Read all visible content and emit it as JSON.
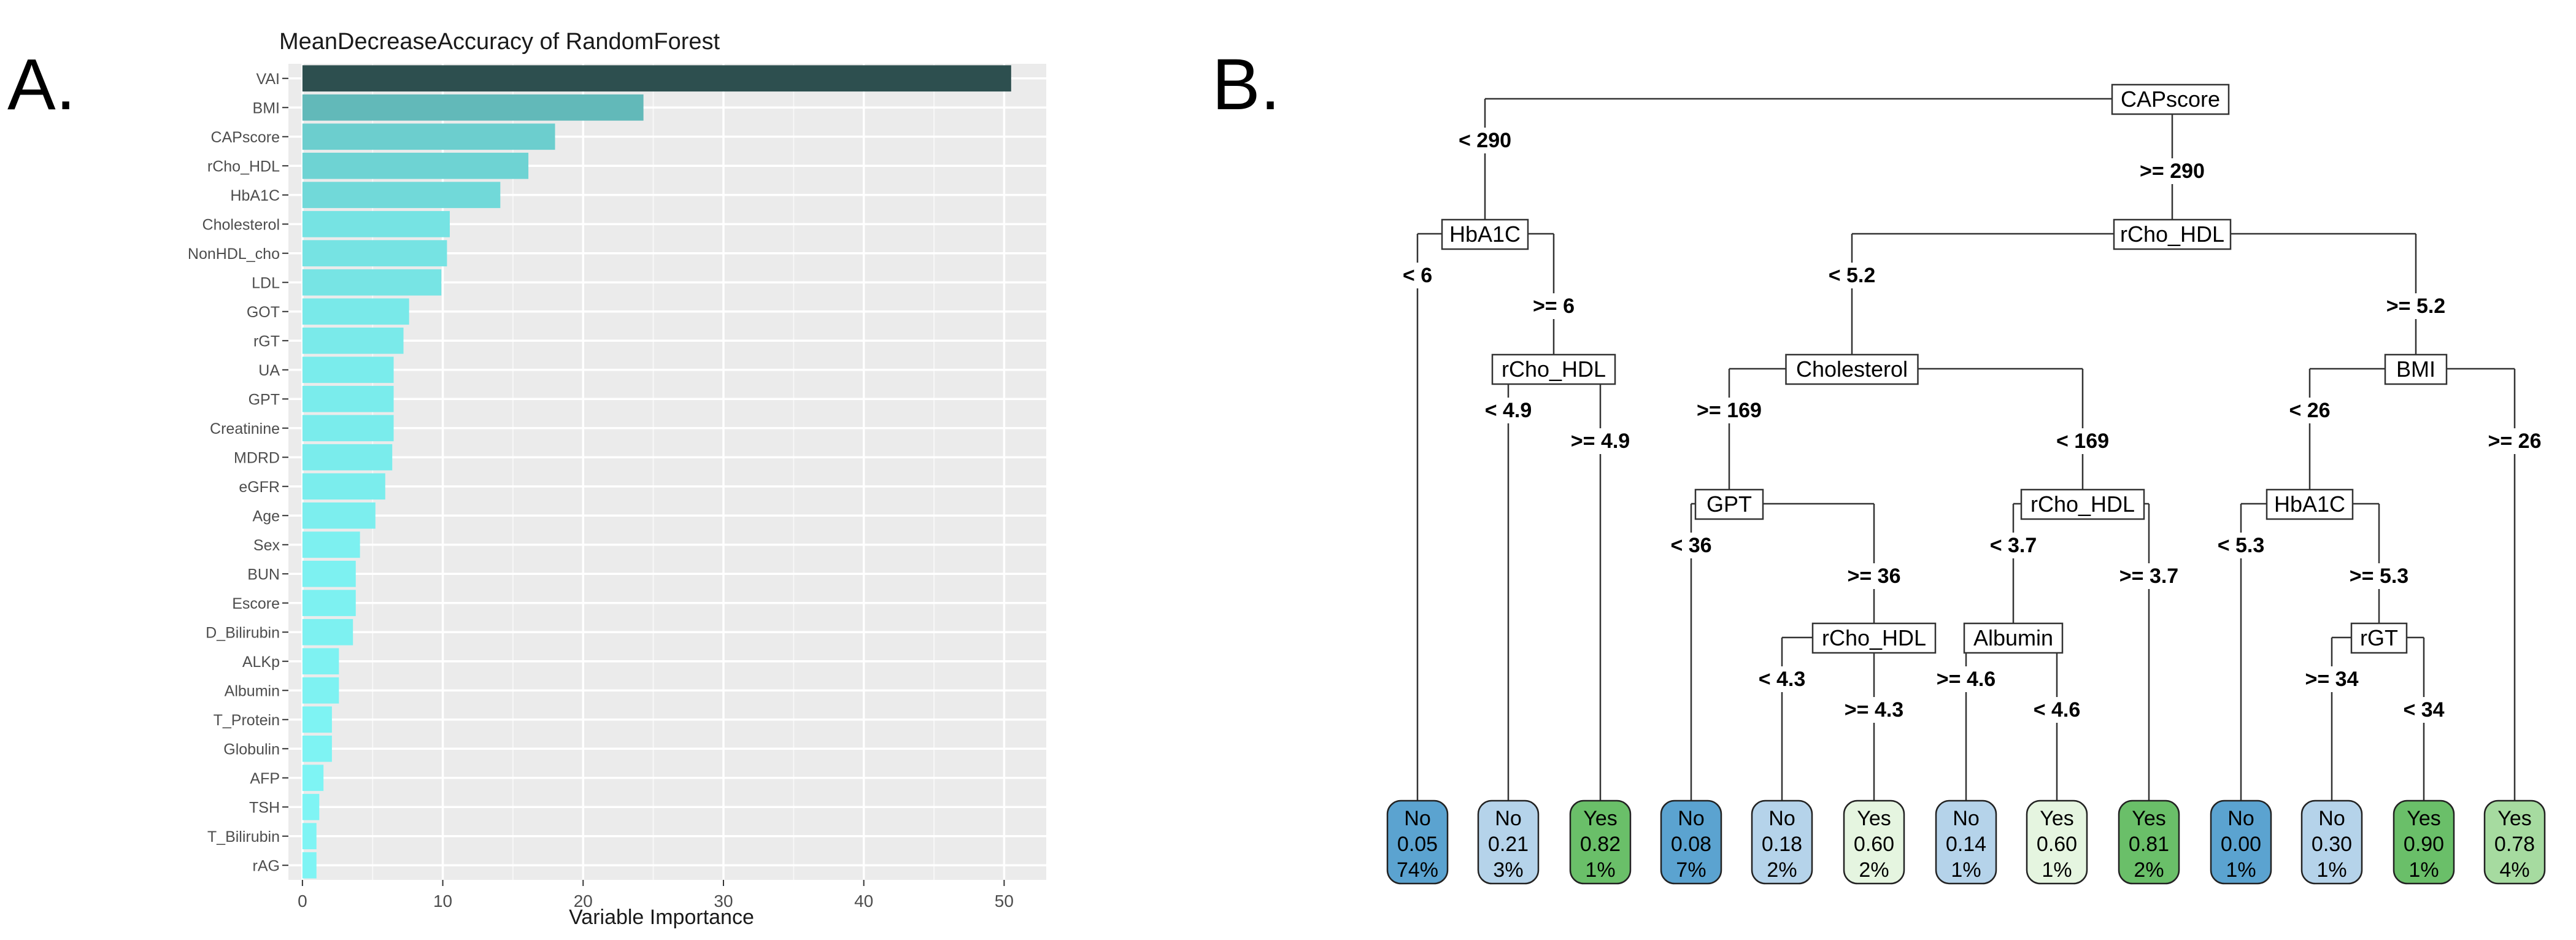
{
  "panels": {
    "a": {
      "letter": "A."
    },
    "b": {
      "letter": "B."
    }
  },
  "chart_data": [
    {
      "type": "bar",
      "orientation": "horizontal",
      "title": "MeanDecreaseAccuracy of RandomForest",
      "xlabel": "Variable Importance",
      "ylabel": "",
      "xlim": [
        -1,
        53
      ],
      "xticks": [
        0,
        10,
        20,
        30,
        40,
        50
      ],
      "grid": true,
      "background": "#ebebeb",
      "color_low": "#7ff5f5",
      "color_high": "#2d4f4f",
      "categories": [
        "VAI",
        "BMI",
        "CAPscore",
        "rCho_HDL",
        "HbA1C",
        "Cholesterol",
        "NonHDL_cho",
        "LDL",
        "GOT",
        "rGT",
        "UA",
        "GPT",
        "Creatinine",
        "MDRD",
        "eGFR",
        "Age",
        "Sex",
        "BUN",
        "Escore",
        "D_Bilirubin",
        "ALKp",
        "Albumin",
        "T_Protein",
        "Globulin",
        "AFP",
        "TSH",
        "T_Bilirubin",
        "rAG"
      ],
      "values": [
        50.5,
        24.3,
        18.0,
        16.1,
        14.1,
        10.5,
        10.3,
        9.9,
        7.6,
        7.2,
        6.5,
        6.5,
        6.5,
        6.4,
        5.9,
        5.2,
        4.1,
        3.8,
        3.8,
        3.6,
        2.6,
        2.6,
        2.1,
        2.1,
        1.5,
        1.2,
        1.0,
        1.0
      ]
    },
    {
      "type": "decision_tree",
      "title": "",
      "colors": {
        "no_dark": "#5ba3d0",
        "no_light": "#b5d3ea",
        "yes_light": "#e5f5e0",
        "yes_mid": "#a6dba0",
        "yes_dark": "#6abf69"
      },
      "nodes": [
        {
          "id": "n1",
          "label": "CAPscore"
        },
        {
          "id": "n2",
          "label": "HbA1C"
        },
        {
          "id": "n3",
          "label": "rCho_HDL"
        },
        {
          "id": "n4",
          "label": "rCho_HDL"
        },
        {
          "id": "n5",
          "label": "Cholesterol"
        },
        {
          "id": "n6",
          "label": "BMI"
        },
        {
          "id": "n7",
          "label": "GPT"
        },
        {
          "id": "n8",
          "label": "rCho_HDL"
        },
        {
          "id": "n9",
          "label": "HbA1C"
        },
        {
          "id": "n10",
          "label": "rCho_HDL"
        },
        {
          "id": "n11",
          "label": "Albumin"
        },
        {
          "id": "n12",
          "label": "rGT"
        }
      ],
      "splits": [
        {
          "parent": "n1",
          "left": "< 290",
          "right": ">= 290"
        },
        {
          "parent": "n2",
          "left": "< 6",
          "right": ">= 6"
        },
        {
          "parent": "n3",
          "left": "< 5.2",
          "right": ">= 5.2"
        },
        {
          "parent": "n4",
          "left": "< 4.9",
          "right": ">= 4.9"
        },
        {
          "parent": "n5",
          "left": ">= 169",
          "right": "< 169"
        },
        {
          "parent": "n6",
          "left": "< 26",
          "right": ">= 26"
        },
        {
          "parent": "n7",
          "left": "< 36",
          "right": ">= 36"
        },
        {
          "parent": "n8",
          "left": "< 3.7",
          "right": ">= 3.7"
        },
        {
          "parent": "n9",
          "left": "< 5.3",
          "right": ">= 5.3"
        },
        {
          "parent": "n10",
          "left": "< 4.3",
          "right": ">= 4.3"
        },
        {
          "parent": "n11",
          "left": ">= 4.6",
          "right": "< 4.6"
        },
        {
          "parent": "n12",
          "left": ">= 34",
          "right": "< 34"
        }
      ],
      "leaves": [
        {
          "cls": "No",
          "prob": "0.05",
          "pct": "74%",
          "tone": "no_dark"
        },
        {
          "cls": "No",
          "prob": "0.21",
          "pct": "3%",
          "tone": "no_light"
        },
        {
          "cls": "Yes",
          "prob": "0.82",
          "pct": "1%",
          "tone": "yes_dark"
        },
        {
          "cls": "No",
          "prob": "0.08",
          "pct": "7%",
          "tone": "no_dark"
        },
        {
          "cls": "No",
          "prob": "0.18",
          "pct": "2%",
          "tone": "no_light"
        },
        {
          "cls": "Yes",
          "prob": "0.60",
          "pct": "2%",
          "tone": "yes_light"
        },
        {
          "cls": "No",
          "prob": "0.14",
          "pct": "1%",
          "tone": "no_light"
        },
        {
          "cls": "Yes",
          "prob": "0.60",
          "pct": "1%",
          "tone": "yes_light"
        },
        {
          "cls": "Yes",
          "prob": "0.81",
          "pct": "2%",
          "tone": "yes_dark"
        },
        {
          "cls": "No",
          "prob": "0.00",
          "pct": "1%",
          "tone": "no_dark"
        },
        {
          "cls": "No",
          "prob": "0.30",
          "pct": "1%",
          "tone": "no_light"
        },
        {
          "cls": "Yes",
          "prob": "0.90",
          "pct": "1%",
          "tone": "yes_dark"
        },
        {
          "cls": "Yes",
          "prob": "0.78",
          "pct": "4%",
          "tone": "yes_mid"
        }
      ]
    }
  ]
}
